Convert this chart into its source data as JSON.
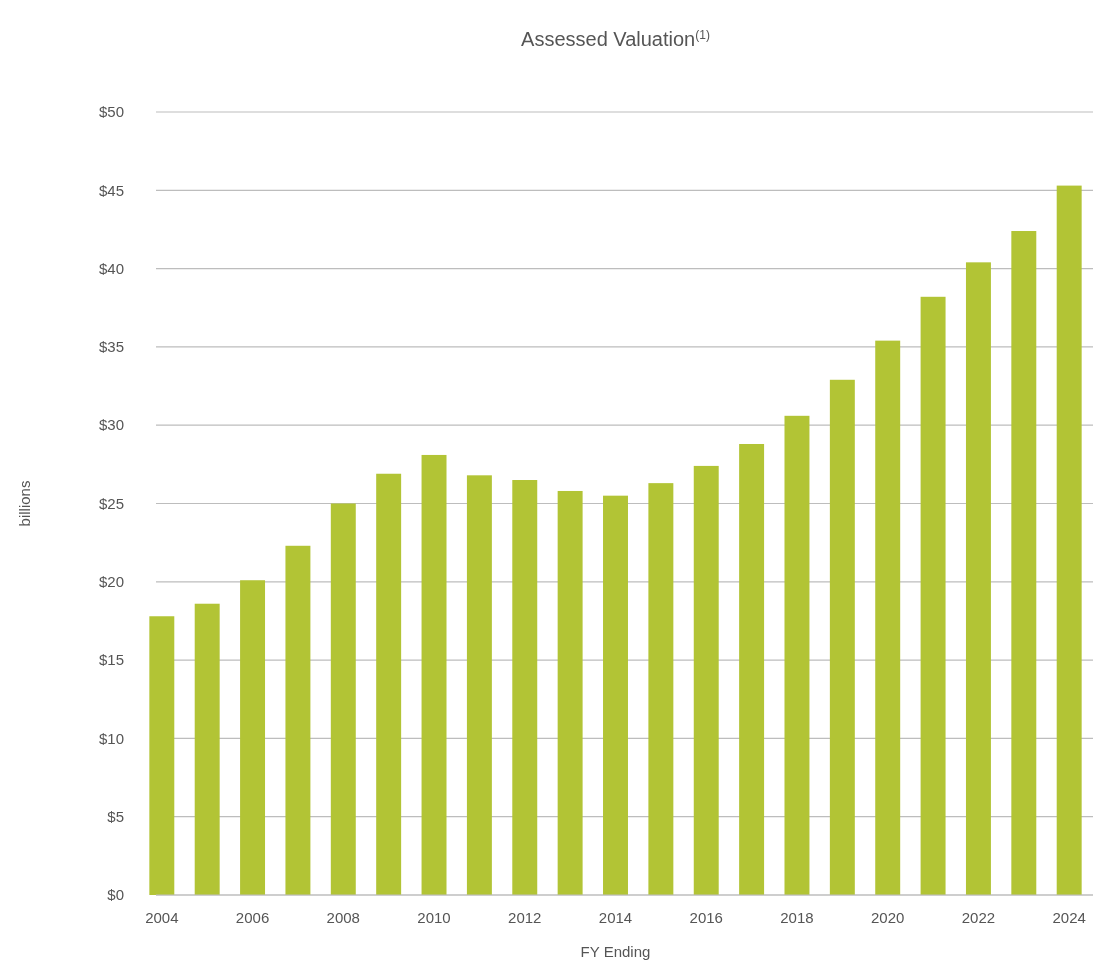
{
  "chart_data": {
    "type": "bar",
    "title": "Assessed Valuation$^{(1)}$",
    "xlabel": "FY Ending",
    "ylabel": "billions",
    "categories": [
      "2004",
      null,
      "2006",
      null,
      "2008",
      null,
      "2010",
      null,
      "2012",
      null,
      "2014",
      null,
      "2016",
      null,
      "2018",
      null,
      "2020",
      null,
      "2022",
      null,
      "2024"
    ],
    "values": [
      17.8,
      18.6,
      20.1,
      22.3,
      25.0,
      26.9,
      28.1,
      26.8,
      26.5,
      25.8,
      25.5,
      26.3,
      27.4,
      28.8,
      30.6,
      32.9,
      35.4,
      38.2,
      40.4,
      42.4,
      45.3
    ],
    "color": "#b2c435",
    "ylim": [
      0,
      50
    ],
    "yticks": [
      {
        "value": 0,
        "label": "$0"
      },
      {
        "value": 5,
        "label": "$5"
      },
      {
        "value": 10,
        "label": "$10"
      },
      {
        "value": 15,
        "label": "$15"
      },
      {
        "value": 20,
        "label": "$20"
      },
      {
        "value": 25,
        "label": "$25"
      },
      {
        "value": 30,
        "label": "$30"
      },
      {
        "value": 35,
        "label": "$35"
      },
      {
        "value": 40,
        "label": "$40"
      },
      {
        "value": 45,
        "label": "$45"
      },
      {
        "value": 50,
        "label": "$50"
      }
    ],
    "grid": "y"
  }
}
